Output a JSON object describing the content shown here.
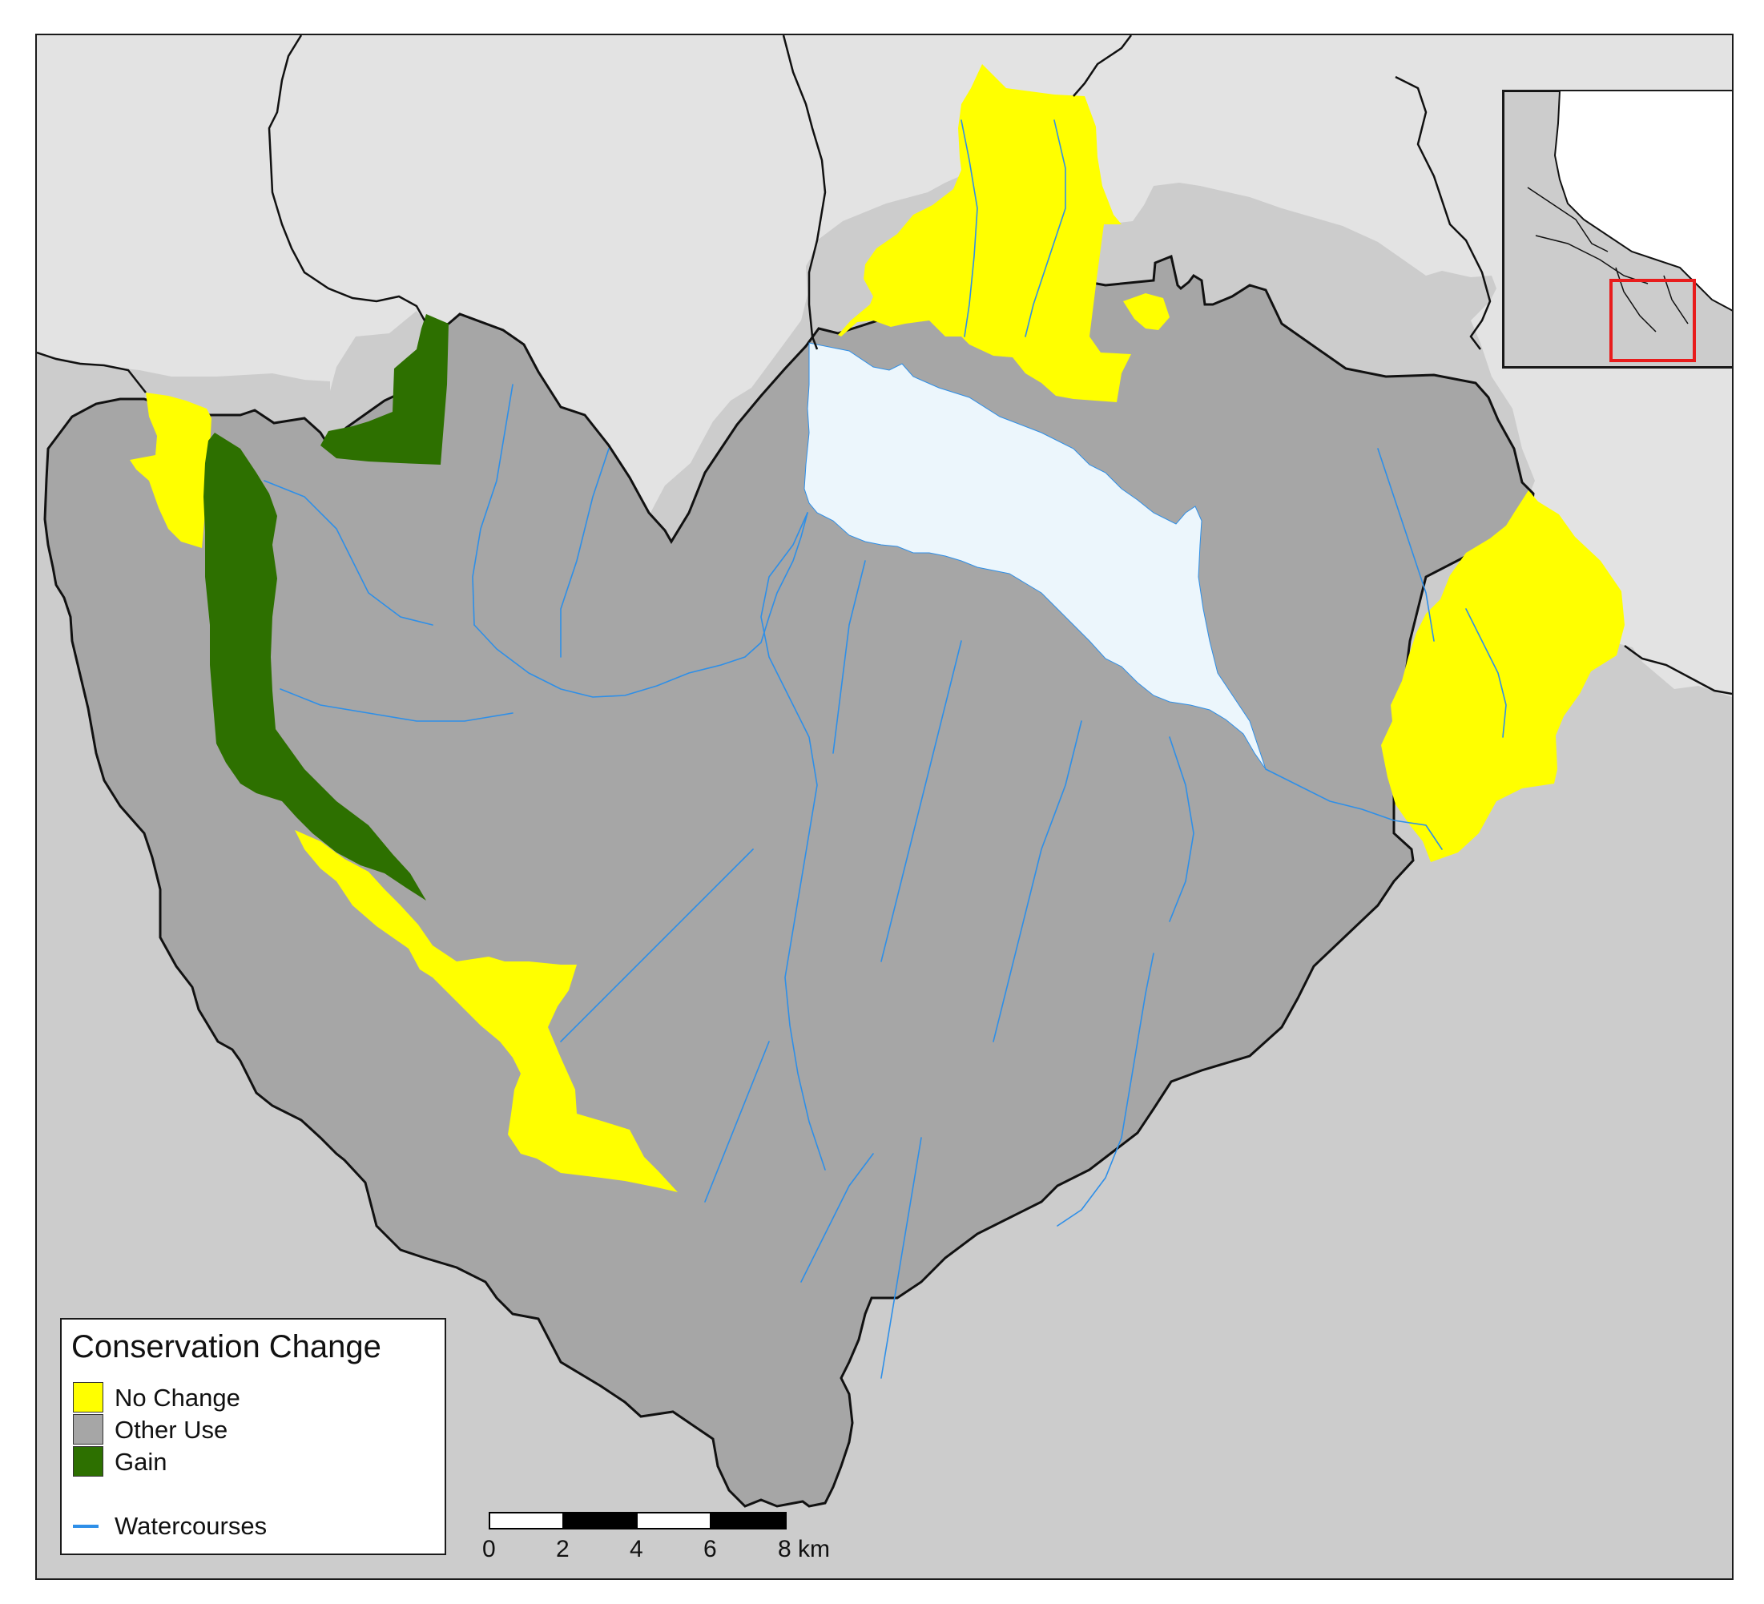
{
  "map": {
    "colors": {
      "background_light": "#e3e3e3",
      "background_dark": "#cccccc",
      "no_change": "#ffff00",
      "other_use": "#a6a6a6",
      "gain": "#2d7000",
      "lake": "#ecf6fc",
      "watercourses": "#2e8fe8",
      "boundary": "#111111",
      "inset_highlight": "#e81c1c"
    }
  },
  "legend": {
    "title": "Conservation Change",
    "items": [
      {
        "label": "No Change",
        "color": "#ffff00"
      },
      {
        "label": "Other Use",
        "color": "#a6a6a6"
      },
      {
        "label": "Gain",
        "color": "#2d7000"
      }
    ],
    "watercourses_label": "Watercourses",
    "watercourses_color": "#2e8fe8"
  },
  "scalebar": {
    "ticks": [
      "0",
      "2",
      "4",
      "6",
      "8 km"
    ]
  },
  "inset": {
    "highlight_color": "#e81c1c"
  }
}
